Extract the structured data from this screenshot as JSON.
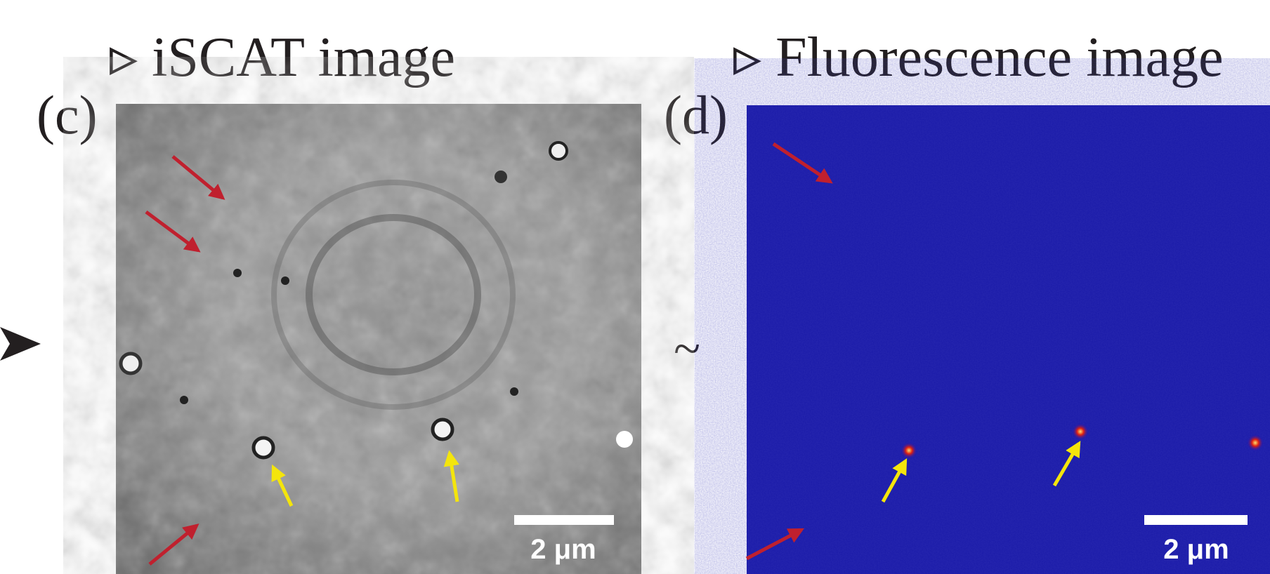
{
  "panels": [
    {
      "heading": "▹ iSCAT image",
      "label": "(c)",
      "scale_bar": "2 μm"
    },
    {
      "heading": "▹ Fluorescence image",
      "label": "(d)",
      "scale_bar": "2 μm"
    }
  ],
  "separator": "~"
}
